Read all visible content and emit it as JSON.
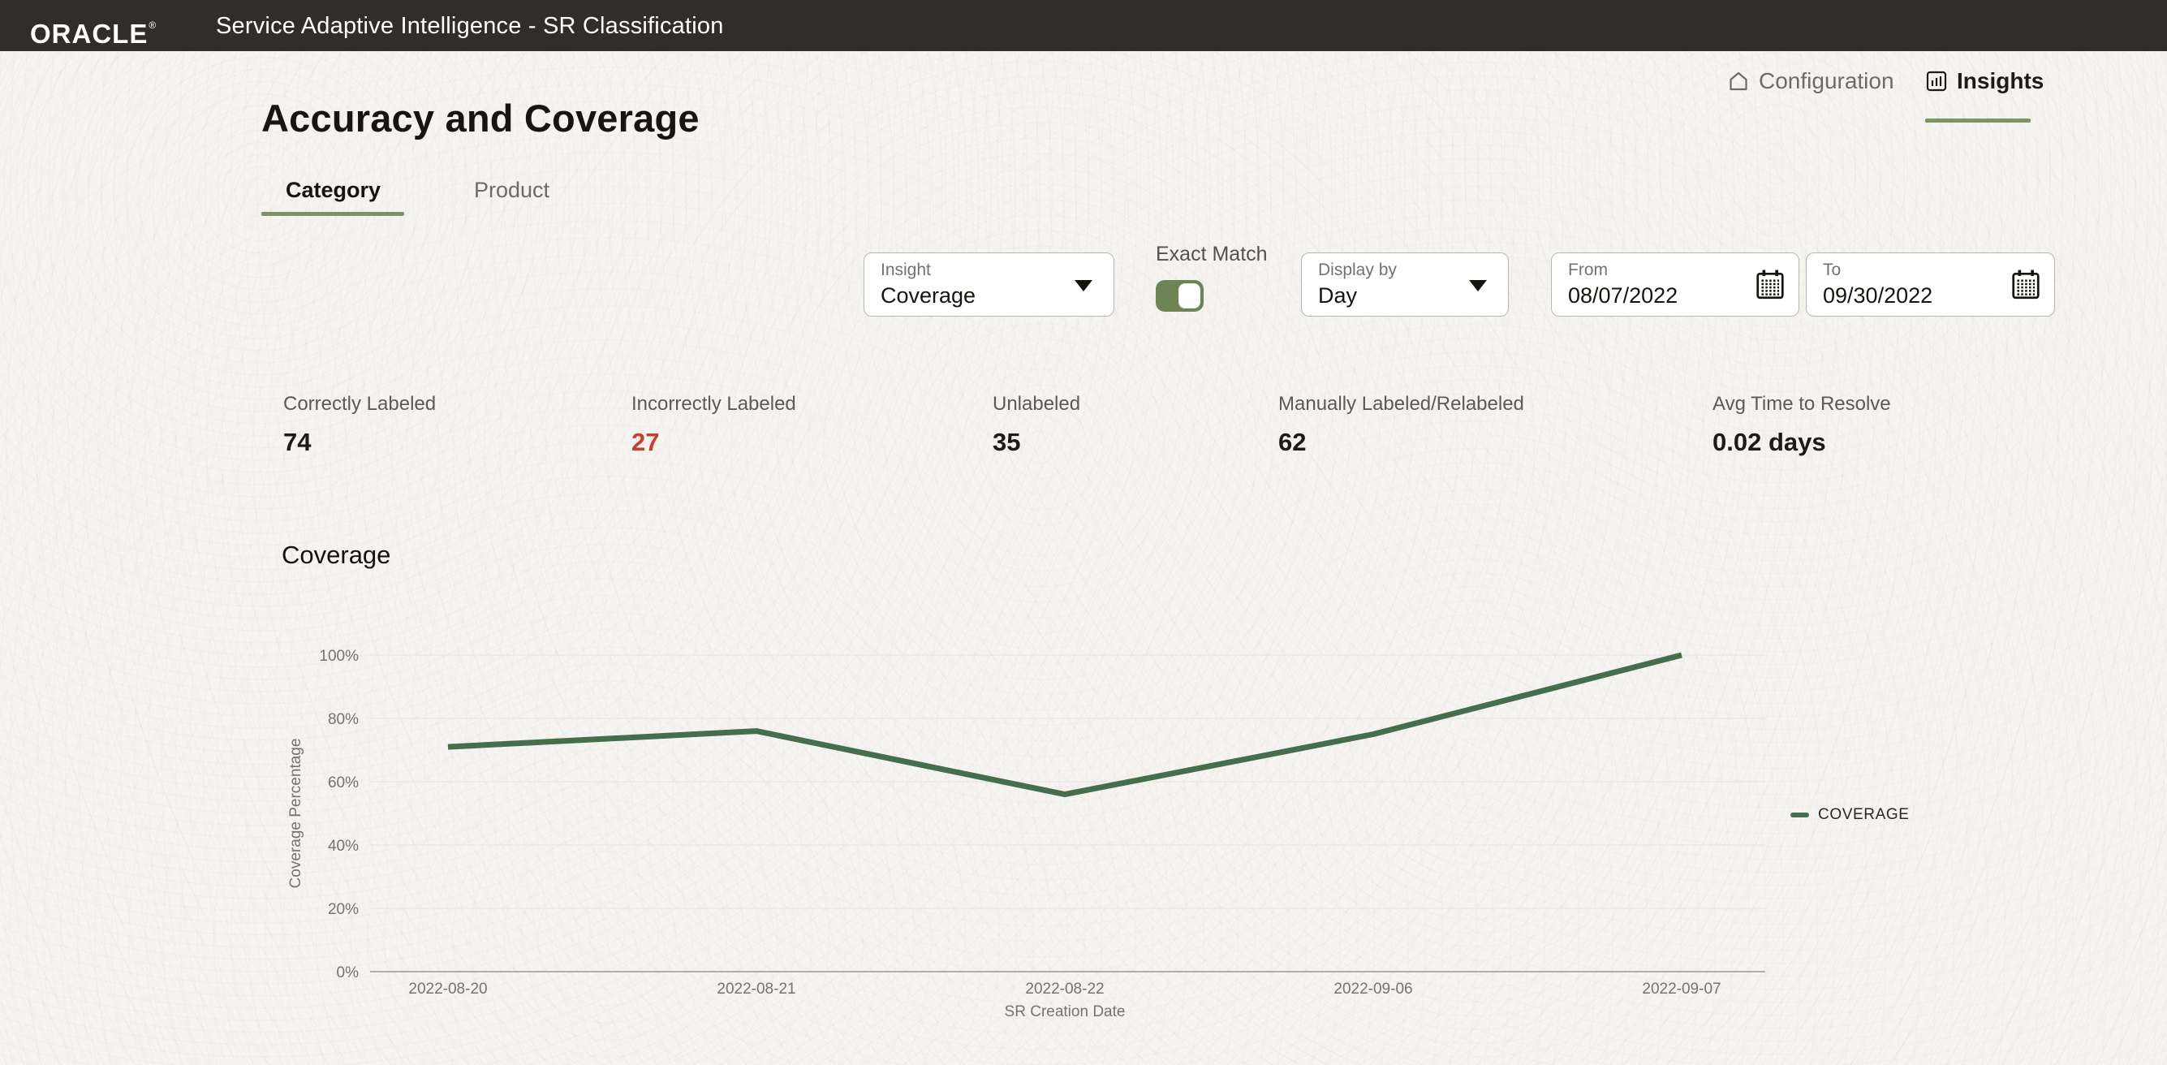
{
  "header": {
    "brand": "ORACLE",
    "registered_mark": "®",
    "app_title": "Service Adaptive Intelligence - SR Classification"
  },
  "nav": {
    "configuration_label": "Configuration",
    "insights_label": "Insights"
  },
  "page": {
    "title": "Accuracy and Coverage"
  },
  "tabs": {
    "category": "Category",
    "product": "Product"
  },
  "filters": {
    "insight": {
      "label": "Insight",
      "value": "Coverage"
    },
    "exact_match_label": "Exact Match",
    "exact_match_on": true,
    "display_by": {
      "label": "Display by",
      "value": "Day"
    },
    "from": {
      "label": "From",
      "value": "08/07/2022"
    },
    "to": {
      "label": "To",
      "value": "09/30/2022"
    }
  },
  "metrics": [
    {
      "label": "Correctly Labeled",
      "value": "74",
      "value_color": "#1d1a17"
    },
    {
      "label": "Incorrectly Labeled",
      "value": "27",
      "value_color": "#c5402f"
    },
    {
      "label": "Unlabeled",
      "value": "35",
      "value_color": "#1d1a17"
    },
    {
      "label": "Manually Labeled/Relabeled",
      "value": "62",
      "value_color": "#1d1a17"
    },
    {
      "label": "Avg Time to Resolve",
      "value": "0.02 days",
      "value_color": "#1d1a17"
    }
  ],
  "chart_data": {
    "type": "line",
    "title": "Coverage",
    "x": [
      "2022-08-20",
      "2022-08-21",
      "2022-08-22",
      "2022-09-06",
      "2022-09-07"
    ],
    "series": [
      {
        "name": "COVERAGE",
        "values": [
          71,
          76,
          56,
          75,
          100
        ],
        "color": "#456e4d"
      }
    ],
    "xlabel": "SR Creation Date",
    "ylabel": "Coverage Percentage",
    "ylim": [
      0,
      100
    ],
    "yticks": [
      0,
      20,
      40,
      60,
      80,
      100
    ],
    "ytick_format": "percent",
    "grid": true,
    "legend_position": "right"
  },
  "colors": {
    "header_bg": "#312d2a",
    "accent_green": "#7d9464",
    "toggle_green": "#6f8455",
    "alert_red": "#c5402f"
  }
}
